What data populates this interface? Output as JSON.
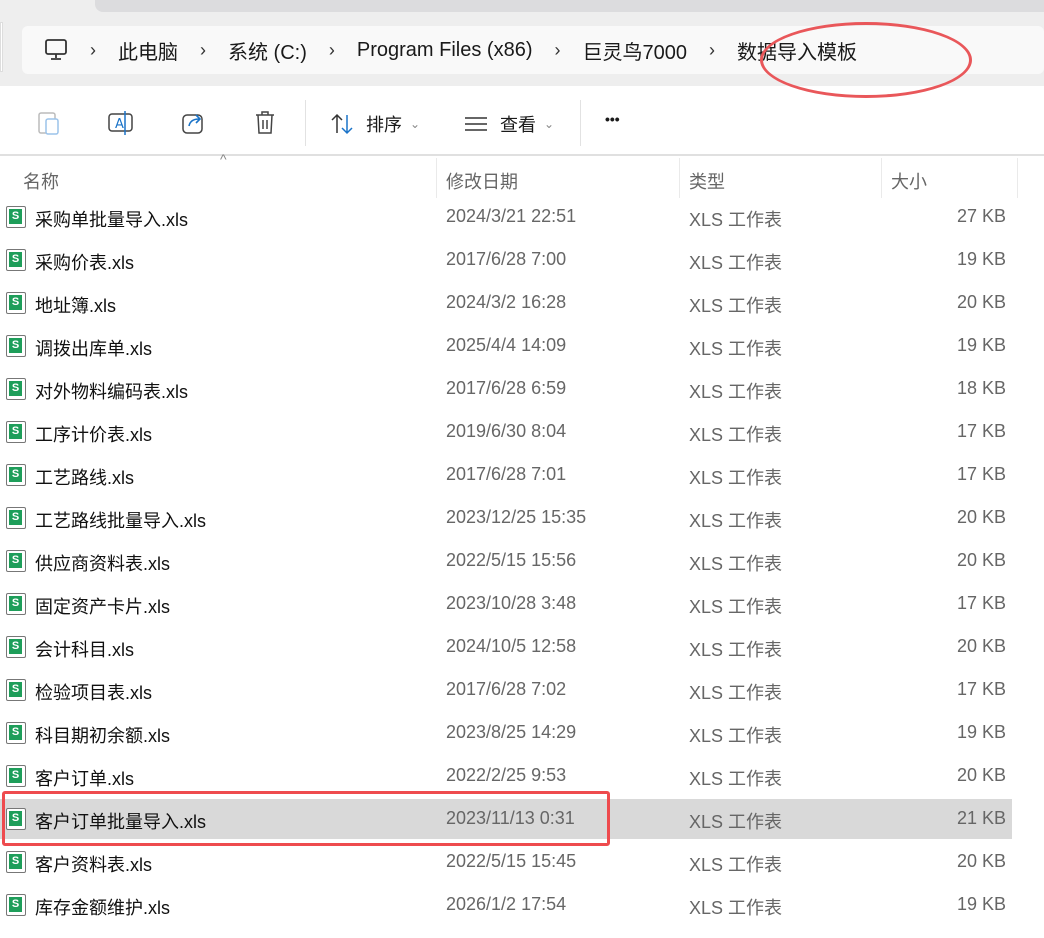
{
  "breadcrumb": [
    "此电脑",
    "系统 (C:)",
    "Program Files (x86)",
    "巨灵鸟7000",
    "数据导入模板"
  ],
  "toolbar": {
    "sort_label": "排序",
    "view_label": "查看",
    "more": "•••",
    "icons": [
      "paste-icon",
      "rename-icon",
      "share-icon",
      "delete-icon"
    ]
  },
  "columns": {
    "name": "名称",
    "date": "修改日期",
    "type": "类型",
    "size": "大小"
  },
  "files": [
    {
      "name": "采购单批量导入.xls",
      "date": "2024/3/21 22:51",
      "type": "XLS 工作表",
      "size": "27 KB"
    },
    {
      "name": "采购价表.xls",
      "date": "2017/6/28 7:00",
      "type": "XLS 工作表",
      "size": "19 KB"
    },
    {
      "name": "地址簿.xls",
      "date": "2024/3/2 16:28",
      "type": "XLS 工作表",
      "size": "20 KB"
    },
    {
      "name": "调拨出库单.xls",
      "date": "2025/4/4 14:09",
      "type": "XLS 工作表",
      "size": "19 KB"
    },
    {
      "name": "对外物料编码表.xls",
      "date": "2017/6/28 6:59",
      "type": "XLS 工作表",
      "size": "18 KB"
    },
    {
      "name": "工序计价表.xls",
      "date": "2019/6/30 8:04",
      "type": "XLS 工作表",
      "size": "17 KB"
    },
    {
      "name": "工艺路线.xls",
      "date": "2017/6/28 7:01",
      "type": "XLS 工作表",
      "size": "17 KB"
    },
    {
      "name": "工艺路线批量导入.xls",
      "date": "2023/12/25 15:35",
      "type": "XLS 工作表",
      "size": "20 KB"
    },
    {
      "name": "供应商资料表.xls",
      "date": "2022/5/15 15:56",
      "type": "XLS 工作表",
      "size": "20 KB"
    },
    {
      "name": "固定资产卡片.xls",
      "date": "2023/10/28 3:48",
      "type": "XLS 工作表",
      "size": "17 KB"
    },
    {
      "name": "会计科目.xls",
      "date": "2024/10/5 12:58",
      "type": "XLS 工作表",
      "size": "20 KB"
    },
    {
      "name": "检验项目表.xls",
      "date": "2017/6/28 7:02",
      "type": "XLS 工作表",
      "size": "17 KB"
    },
    {
      "name": "科目期初余额.xls",
      "date": "2023/8/25 14:29",
      "type": "XLS 工作表",
      "size": "19 KB"
    },
    {
      "name": "客户订单.xls",
      "date": "2022/2/25 9:53",
      "type": "XLS 工作表",
      "size": "20 KB"
    },
    {
      "name": "客户订单批量导入.xls",
      "date": "2023/11/13 0:31",
      "type": "XLS 工作表",
      "size": "21 KB",
      "selected": true
    },
    {
      "name": "客户资料表.xls",
      "date": "2022/5/15 15:45",
      "type": "XLS 工作表",
      "size": "20 KB"
    },
    {
      "name": "库存金额维护.xls",
      "date": "2026/1/2 17:54",
      "type": "XLS 工作表",
      "size": "19 KB"
    }
  ],
  "colors": {
    "highlight": "#ee4b4e",
    "selected_row": "#d9d9d9",
    "accent": "#1a73c8"
  }
}
